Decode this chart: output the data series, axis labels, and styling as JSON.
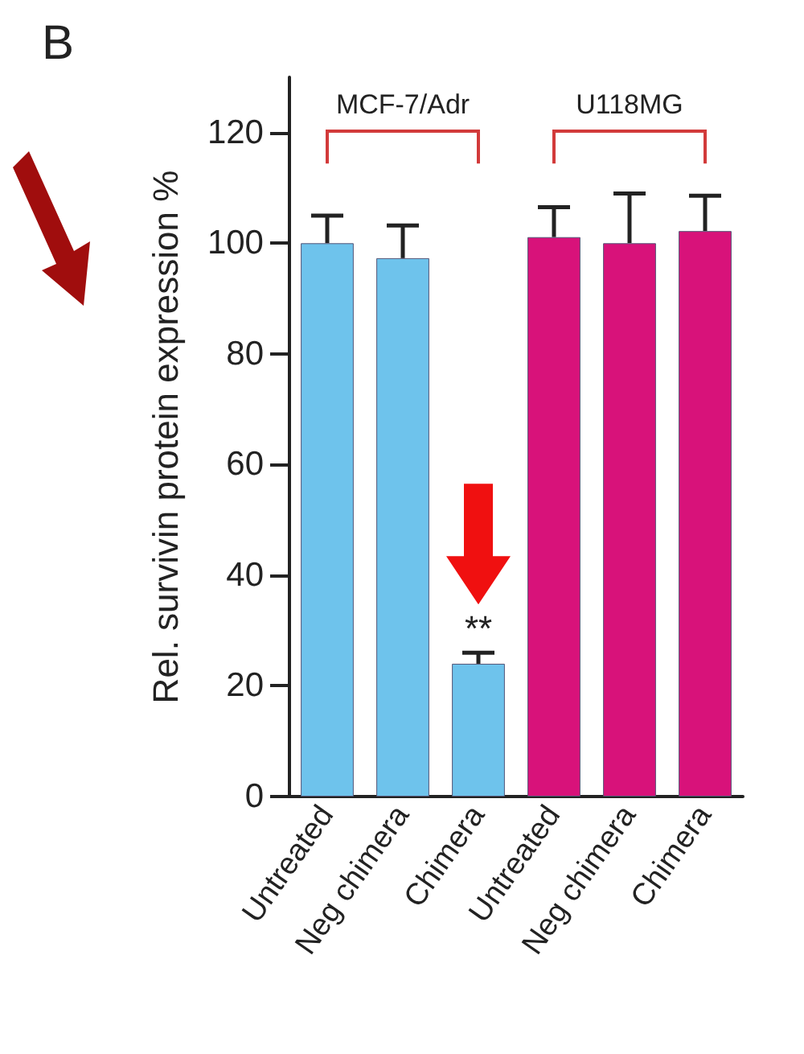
{
  "chart_data": {
    "type": "bar",
    "ylabel": "Rel. survivin protein expression %",
    "categories": [
      "Untreated",
      "Neg chimera",
      "Chimera",
      "Untreated",
      "Neg chimera",
      "Chimera"
    ],
    "values": [
      100,
      97.3,
      24,
      101.1,
      100,
      102.2
    ],
    "colors": [
      "#6ec3ec",
      "#6ec3ec",
      "#6ec3ec",
      "#d8127a",
      "#d8127a",
      "#d8127a"
    ],
    "errors": [
      [
        100,
        105
      ],
      [
        97.3,
        103.2
      ],
      [
        24,
        26
      ],
      [
        101.1,
        106.5
      ],
      [
        100,
        109
      ],
      [
        102.2,
        108.6
      ]
    ],
    "ylim": [
      0,
      130
    ],
    "yticks": [
      0,
      20,
      40,
      60,
      80,
      100,
      120
    ],
    "annotations": [
      "B",
      "MCF-7/Adr",
      "U118MG",
      "**"
    ]
  }
}
